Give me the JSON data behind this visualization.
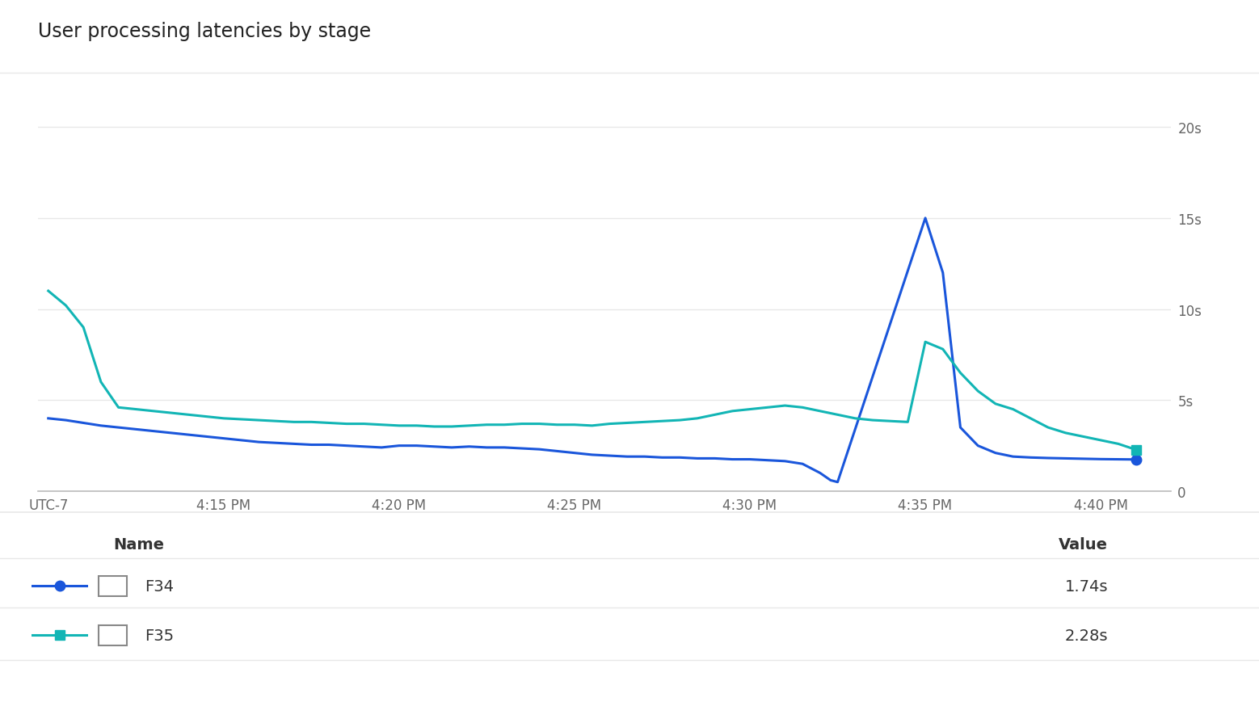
{
  "title": "User processing latencies by stage",
  "background_color": "#ffffff",
  "grid_color": "#e8e8e8",
  "text_color": "#333333",
  "tick_color": "#666666",
  "y_ticks": [
    0,
    5,
    10,
    15,
    20
  ],
  "y_tick_labels": [
    "0",
    "5s",
    "10s",
    "15s",
    "20s"
  ],
  "ylim": [
    0,
    22
  ],
  "x_tick_labels": [
    "UTC-7",
    "4:15 PM",
    "4:20 PM",
    "4:25 PM",
    "4:30 PM",
    "4:35 PM",
    "4:40 PM"
  ],
  "x_tick_positions": [
    0,
    5,
    10,
    15,
    20,
    25,
    30
  ],
  "xlim": [
    -0.3,
    32
  ],
  "f34_color": "#1a56db",
  "f35_color": "#12b5b5",
  "legend_entries": [
    {
      "name": "F34",
      "value": "1.74s"
    },
    {
      "name": "F35",
      "value": "2.28s"
    }
  ],
  "f34_x": [
    0,
    0.5,
    1,
    1.5,
    2,
    2.5,
    3,
    3.5,
    4,
    4.5,
    5,
    5.5,
    6,
    6.5,
    7,
    7.5,
    8,
    8.5,
    9,
    9.5,
    10,
    10.5,
    11,
    11.5,
    12,
    12.5,
    13,
    13.5,
    14,
    14.5,
    15,
    15.5,
    16,
    16.5,
    17,
    17.5,
    18,
    18.5,
    19,
    19.5,
    20,
    20.5,
    21,
    21.5,
    22,
    22.3,
    22.5,
    25,
    25.5,
    26,
    26.5,
    27,
    27.5,
    28,
    28.5,
    29,
    29.5,
    30,
    30.5,
    31
  ],
  "f34_y": [
    4.0,
    3.9,
    3.75,
    3.6,
    3.5,
    3.4,
    3.3,
    3.2,
    3.1,
    3.0,
    2.9,
    2.8,
    2.7,
    2.65,
    2.6,
    2.55,
    2.55,
    2.5,
    2.45,
    2.4,
    2.5,
    2.5,
    2.45,
    2.4,
    2.45,
    2.4,
    2.4,
    2.35,
    2.3,
    2.2,
    2.1,
    2.0,
    1.95,
    1.9,
    1.9,
    1.85,
    1.85,
    1.8,
    1.8,
    1.75,
    1.75,
    1.7,
    1.65,
    1.5,
    1.0,
    0.6,
    0.5,
    15.0,
    12.0,
    3.5,
    2.5,
    2.1,
    1.9,
    1.85,
    1.82,
    1.8,
    1.78,
    1.76,
    1.75,
    1.74
  ],
  "f35_x": [
    0,
    0.5,
    1,
    1.5,
    2,
    2.5,
    3,
    3.5,
    4,
    4.5,
    5,
    5.5,
    6,
    6.5,
    7,
    7.5,
    8,
    8.5,
    9,
    9.5,
    10,
    10.5,
    11,
    11.5,
    12,
    12.5,
    13,
    13.5,
    14,
    14.5,
    15,
    15.5,
    16,
    16.5,
    17,
    17.5,
    18,
    18.5,
    19,
    19.5,
    20,
    20.5,
    21,
    21.5,
    22,
    22.5,
    23,
    23.5,
    24,
    24.5,
    25,
    25.5,
    26,
    26.5,
    27,
    27.5,
    28,
    28.5,
    29,
    29.5,
    30,
    30.5,
    31
  ],
  "f35_y": [
    11.0,
    10.2,
    9.0,
    6.0,
    4.6,
    4.5,
    4.4,
    4.3,
    4.2,
    4.1,
    4.0,
    3.95,
    3.9,
    3.85,
    3.8,
    3.8,
    3.75,
    3.7,
    3.7,
    3.65,
    3.6,
    3.6,
    3.55,
    3.55,
    3.6,
    3.65,
    3.65,
    3.7,
    3.7,
    3.65,
    3.65,
    3.6,
    3.7,
    3.75,
    3.8,
    3.85,
    3.9,
    4.0,
    4.2,
    4.4,
    4.5,
    4.6,
    4.7,
    4.6,
    4.4,
    4.2,
    4.0,
    3.9,
    3.85,
    3.8,
    8.2,
    7.8,
    6.5,
    5.5,
    4.8,
    4.5,
    4.0,
    3.5,
    3.2,
    3.0,
    2.8,
    2.6,
    2.28
  ]
}
